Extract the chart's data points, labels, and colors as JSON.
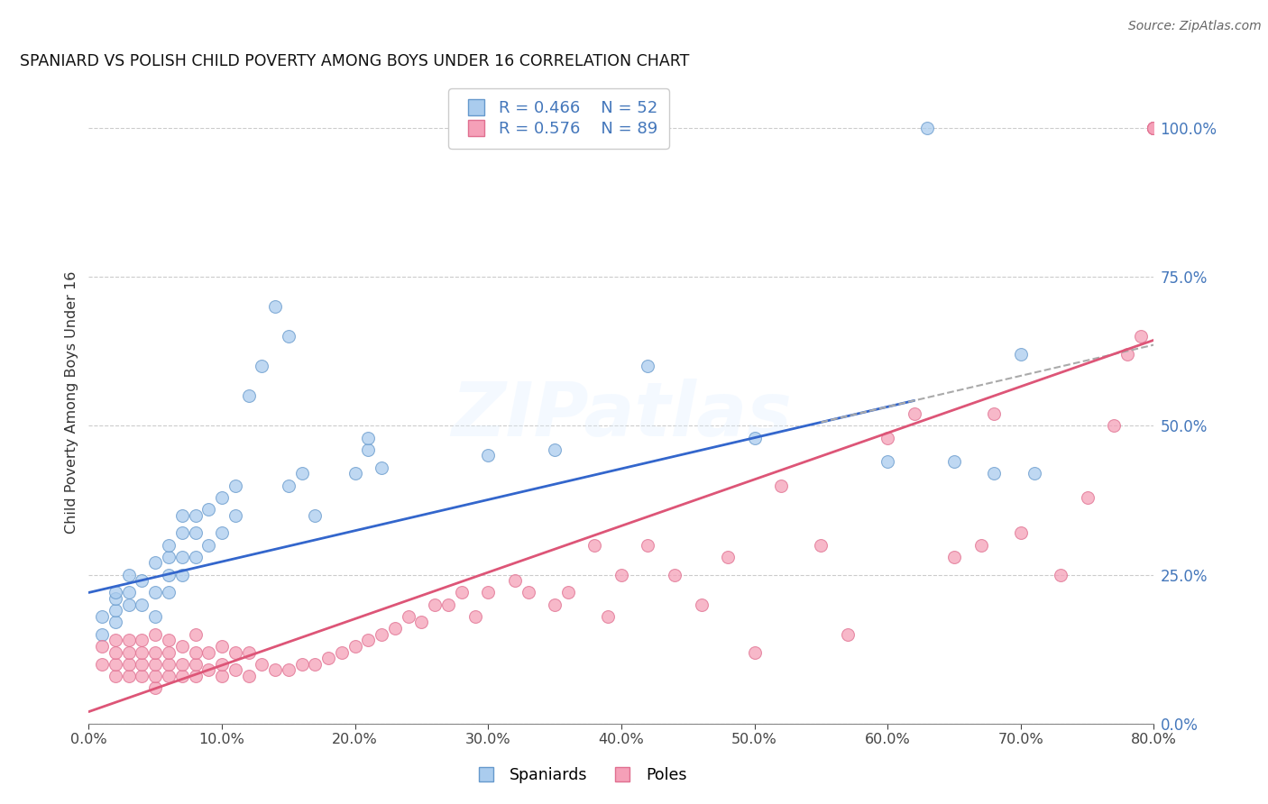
{
  "title": "SPANIARD VS POLISH CHILD POVERTY AMONG BOYS UNDER 16 CORRELATION CHART",
  "source": "Source: ZipAtlas.com",
  "ylabel": "Child Poverty Among Boys Under 16",
  "xlim": [
    0.0,
    0.8
  ],
  "ylim": [
    0.0,
    1.08
  ],
  "yticks_right": [
    0.0,
    0.25,
    0.5,
    0.75,
    1.0
  ],
  "xticks": [
    0.0,
    0.1,
    0.2,
    0.3,
    0.4,
    0.5,
    0.6,
    0.7,
    0.8
  ],
  "spaniards_color": "#aaccee",
  "poles_color": "#f5a0b8",
  "spaniards_edge": "#6699cc",
  "poles_edge": "#e07090",
  "blue_line_color": "#3366cc",
  "pink_line_color": "#dd5577",
  "dashed_color": "#aaaaaa",
  "legend_R_blue": "R = 0.466",
  "legend_N_blue": "N = 52",
  "legend_R_pink": "R = 0.576",
  "legend_N_pink": "N = 89",
  "watermark": "ZIPatlas",
  "right_tick_color": "#4477bb",
  "blue_intercept": 0.22,
  "blue_slope": 0.52,
  "pink_intercept": 0.02,
  "pink_slope": 0.78,
  "spaniards_x": [
    0.01,
    0.01,
    0.02,
    0.02,
    0.02,
    0.02,
    0.03,
    0.03,
    0.03,
    0.04,
    0.04,
    0.05,
    0.05,
    0.05,
    0.06,
    0.06,
    0.06,
    0.06,
    0.07,
    0.07,
    0.07,
    0.07,
    0.08,
    0.08,
    0.08,
    0.09,
    0.09,
    0.1,
    0.1,
    0.11,
    0.11,
    0.12,
    0.13,
    0.14,
    0.15,
    0.15,
    0.16,
    0.17,
    0.2,
    0.21,
    0.21,
    0.22,
    0.3,
    0.35,
    0.42,
    0.5,
    0.6,
    0.63,
    0.65,
    0.68,
    0.7,
    0.71
  ],
  "spaniards_y": [
    0.15,
    0.18,
    0.17,
    0.19,
    0.21,
    0.22,
    0.2,
    0.22,
    0.25,
    0.2,
    0.24,
    0.18,
    0.22,
    0.27,
    0.22,
    0.25,
    0.28,
    0.3,
    0.25,
    0.28,
    0.32,
    0.35,
    0.28,
    0.32,
    0.35,
    0.3,
    0.36,
    0.32,
    0.38,
    0.35,
    0.4,
    0.55,
    0.6,
    0.7,
    0.4,
    0.65,
    0.42,
    0.35,
    0.42,
    0.46,
    0.48,
    0.43,
    0.45,
    0.46,
    0.6,
    0.48,
    0.44,
    1.0,
    0.44,
    0.42,
    0.62,
    0.42
  ],
  "poles_x": [
    0.01,
    0.01,
    0.02,
    0.02,
    0.02,
    0.02,
    0.03,
    0.03,
    0.03,
    0.03,
    0.04,
    0.04,
    0.04,
    0.04,
    0.05,
    0.05,
    0.05,
    0.05,
    0.05,
    0.06,
    0.06,
    0.06,
    0.06,
    0.07,
    0.07,
    0.07,
    0.08,
    0.08,
    0.08,
    0.08,
    0.09,
    0.09,
    0.1,
    0.1,
    0.1,
    0.11,
    0.11,
    0.12,
    0.12,
    0.13,
    0.14,
    0.15,
    0.16,
    0.17,
    0.18,
    0.19,
    0.2,
    0.21,
    0.22,
    0.23,
    0.24,
    0.25,
    0.26,
    0.27,
    0.28,
    0.29,
    0.3,
    0.32,
    0.33,
    0.35,
    0.36,
    0.38,
    0.39,
    0.4,
    0.42,
    0.44,
    0.46,
    0.48,
    0.5,
    0.52,
    0.55,
    0.57,
    0.6,
    0.62,
    0.65,
    0.67,
    0.68,
    0.7,
    0.73,
    0.75,
    0.77,
    0.78,
    0.79,
    0.8,
    0.8,
    0.8,
    0.8,
    0.8,
    0.8
  ],
  "poles_y": [
    0.1,
    0.13,
    0.08,
    0.1,
    0.12,
    0.14,
    0.08,
    0.1,
    0.12,
    0.14,
    0.08,
    0.1,
    0.12,
    0.14,
    0.06,
    0.08,
    0.1,
    0.12,
    0.15,
    0.08,
    0.1,
    0.12,
    0.14,
    0.08,
    0.1,
    0.13,
    0.08,
    0.1,
    0.12,
    0.15,
    0.09,
    0.12,
    0.08,
    0.1,
    0.13,
    0.09,
    0.12,
    0.08,
    0.12,
    0.1,
    0.09,
    0.09,
    0.1,
    0.1,
    0.11,
    0.12,
    0.13,
    0.14,
    0.15,
    0.16,
    0.18,
    0.17,
    0.2,
    0.2,
    0.22,
    0.18,
    0.22,
    0.24,
    0.22,
    0.2,
    0.22,
    0.3,
    0.18,
    0.25,
    0.3,
    0.25,
    0.2,
    0.28,
    0.12,
    0.4,
    0.3,
    0.15,
    0.48,
    0.52,
    0.28,
    0.3,
    0.52,
    0.32,
    0.25,
    0.38,
    0.5,
    0.62,
    0.65,
    1.0,
    1.0,
    1.0,
    1.0,
    1.0,
    1.0
  ]
}
